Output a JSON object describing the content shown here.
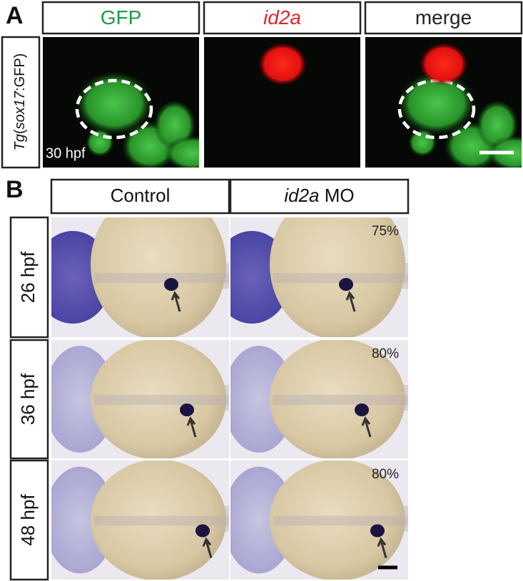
{
  "panel_a": {
    "letter": "A",
    "columns": [
      {
        "parts": [
          {
            "text": "GFP",
            "italic": false
          }
        ],
        "color": "#1f9a45"
      },
      {
        "parts": [
          {
            "text": "id2a",
            "italic": true
          }
        ],
        "color": "#e3232b"
      },
      {
        "parts": [
          {
            "text": "merge",
            "italic": false
          }
        ],
        "color": "#222222"
      }
    ],
    "side_label": [
      {
        "text": "Tg",
        "italic": true
      },
      {
        "text": "(",
        "italic": false
      },
      {
        "text": "sox17",
        "italic": true
      },
      {
        "text": ":GFP)",
        "italic": false
      }
    ],
    "time": "30 hpf"
  },
  "panel_b": {
    "letter": "B",
    "columns": [
      {
        "parts": [
          {
            "text": "Control",
            "italic": false
          }
        ]
      },
      {
        "parts": [
          {
            "text": "id2a",
            "italic": true
          },
          {
            "text": " MO",
            "italic": false
          }
        ]
      }
    ],
    "rows": [
      {
        "label": "26 hpf",
        "percent": "75%"
      },
      {
        "label": "36 hpf",
        "percent": "80%"
      },
      {
        "label": "48 hpf",
        "percent": "80%"
      }
    ]
  }
}
